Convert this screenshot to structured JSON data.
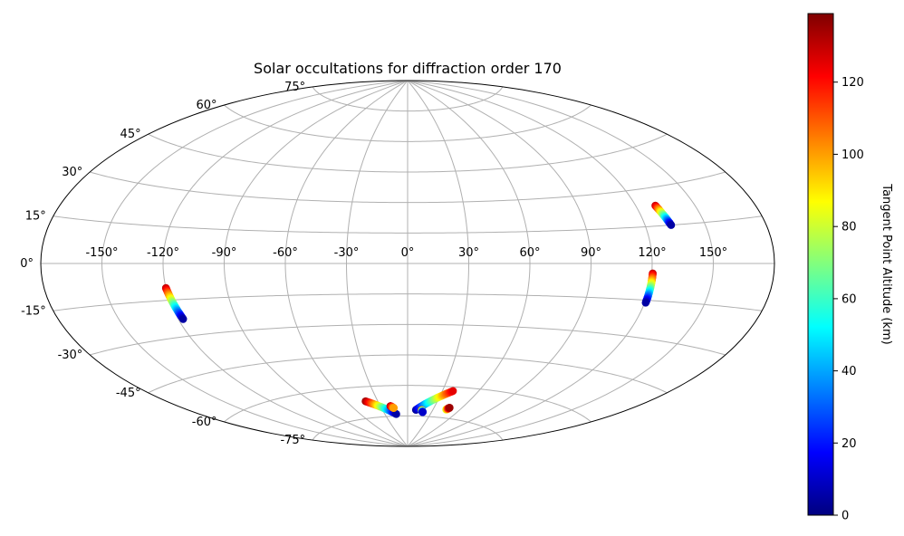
{
  "chart_data": {
    "type": "scatter",
    "projection": "aitoff",
    "title": "Solar occultations for diffraction order 170",
    "lon_ticks": [
      "-150°",
      "-120°",
      "-90°",
      "-60°",
      "-30°",
      "0°",
      "30°",
      "60°",
      "90°",
      "120°",
      "150°"
    ],
    "lon_tick_values": [
      -150,
      -120,
      -90,
      -60,
      -30,
      0,
      30,
      60,
      90,
      120,
      150
    ],
    "lat_ticks": [
      "-75°",
      "-60°",
      "-45°",
      "-30°",
      "-15°",
      "0°",
      "15°",
      "30°",
      "45°",
      "60°",
      "75°"
    ],
    "lat_tick_values": [
      -75,
      -60,
      -45,
      -30,
      -15,
      0,
      15,
      30,
      45,
      60,
      75
    ],
    "grid": true,
    "colorbar": {
      "label": "Tangent Point Altitude (km)",
      "colormap": "jet",
      "range": [
        0,
        139
      ],
      "ticks": [
        "0",
        "20",
        "40",
        "60",
        "80",
        "100",
        "120"
      ],
      "tick_values": [
        0,
        20,
        40,
        60,
        80,
        100,
        120
      ]
    },
    "tracks": [
      {
        "lon_start": -120,
        "lat_start": -10,
        "lon_end": -117.5,
        "lat_end": -23,
        "alt_start": 130,
        "alt_end": 5
      },
      {
        "lon_start": 120.5,
        "lat_start": -4,
        "lon_end": 120.5,
        "lat_end": -16,
        "alt_start": 130,
        "alt_end": 5
      },
      {
        "lon_start": 130,
        "lat_start": 23,
        "lon_end": 133,
        "lat_end": 15,
        "alt_start": 130,
        "alt_end": 5
      },
      {
        "lon_start": -42,
        "lat_start": -67,
        "lon_end": -15,
        "lat_end": -74,
        "alt_start": 135,
        "alt_end": 5
      },
      {
        "lon_start": -19,
        "lat_start": -70,
        "lon_end": -16,
        "lat_end": -71,
        "alt_start": 135,
        "alt_end": 100
      },
      {
        "lon_start": 10,
        "lat_start": -72,
        "lon_end": 39,
        "lat_end": -62,
        "alt_start": 3,
        "alt_end": 125
      },
      {
        "lon_start": 17,
        "lat_start": -72,
        "lon_end": 19,
        "lat_end": -73,
        "alt_start": 120,
        "alt_end": 10
      },
      {
        "lon_start": 45,
        "lat_start": -71,
        "lon_end": 47,
        "lat_end": -70,
        "alt_start": 80,
        "alt_end": 135
      }
    ]
  }
}
